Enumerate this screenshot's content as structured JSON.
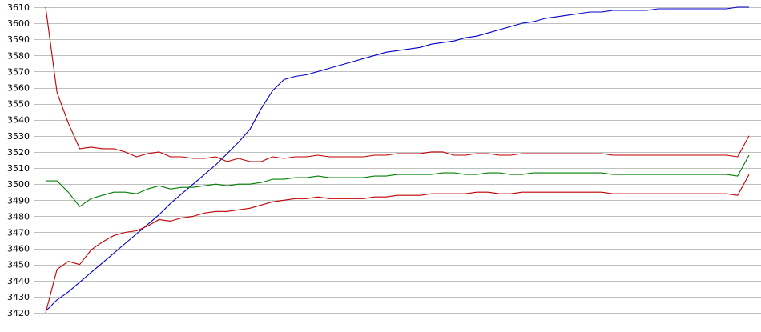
{
  "chart_data": {
    "type": "line",
    "title": "",
    "xlabel": "",
    "ylabel": "",
    "grid": true,
    "ylim": [
      3420,
      3610
    ],
    "yticks": [
      3420,
      3430,
      3440,
      3450,
      3460,
      3470,
      3480,
      3490,
      3500,
      3510,
      3520,
      3530,
      3540,
      3550,
      3560,
      3570,
      3580,
      3590,
      3600,
      3610
    ],
    "x": [
      1,
      2,
      3,
      4,
      5,
      6,
      7,
      8,
      9,
      10,
      11,
      12,
      13,
      14,
      15,
      16,
      17,
      18,
      19,
      20,
      21,
      22,
      23,
      24,
      25,
      26,
      27,
      28,
      29,
      30,
      31,
      32,
      33,
      34,
      35,
      36,
      37,
      38,
      39,
      40,
      41,
      42,
      43,
      44,
      45,
      46,
      47,
      48,
      49,
      50,
      51,
      52,
      53,
      54,
      55,
      56,
      57,
      58,
      59,
      60,
      61,
      62,
      63
    ],
    "series": [
      {
        "color": "#0000c8",
        "values": [
          3421,
          3428,
          3433,
          3439,
          3445,
          3451,
          3457,
          3463,
          3469,
          3475,
          3481,
          3488,
          3494,
          3500,
          3506,
          3512,
          3519,
          3526,
          3534,
          3547,
          3558,
          3565,
          3567,
          3568,
          3570,
          3572,
          3574,
          3576,
          3578,
          3580,
          3582,
          3583,
          3584,
          3585,
          3587,
          3588,
          3589,
          3591,
          3592,
          3594,
          3596,
          3598,
          3600,
          3601,
          3603,
          3604,
          3605,
          3606,
          3607,
          3607,
          3608,
          3608,
          3608,
          3608,
          3609,
          3609,
          3609,
          3609,
          3609,
          3609,
          3609,
          3610,
          3610
        ]
      },
      {
        "color": "#c00000",
        "values": [
          3610,
          3557,
          3538,
          3522,
          3523,
          3522,
          3522,
          3520,
          3517,
          3519,
          3520,
          3517,
          3517,
          3516,
          3516,
          3517,
          3514,
          3516,
          3514,
          3514,
          3517,
          3516,
          3517,
          3517,
          3518,
          3517,
          3517,
          3517,
          3517,
          3518,
          3518,
          3519,
          3519,
          3519,
          3520,
          3520,
          3518,
          3518,
          3519,
          3519,
          3518,
          3518,
          3519,
          3519,
          3519,
          3519,
          3519,
          3519,
          3519,
          3519,
          3518,
          3518,
          3518,
          3518,
          3518,
          3518,
          3518,
          3518,
          3518,
          3518,
          3518,
          3517,
          3530
        ]
      },
      {
        "color": "#008000",
        "values": [
          3502,
          3502,
          3495,
          3486,
          3491,
          3493,
          3495,
          3495,
          3494,
          3497,
          3499,
          3497,
          3498,
          3498,
          3499,
          3500,
          3499,
          3500,
          3500,
          3501,
          3503,
          3503,
          3504,
          3504,
          3505,
          3504,
          3504,
          3504,
          3504,
          3505,
          3505,
          3506,
          3506,
          3506,
          3506,
          3507,
          3507,
          3506,
          3506,
          3507,
          3507,
          3506,
          3506,
          3507,
          3507,
          3507,
          3507,
          3507,
          3507,
          3507,
          3506,
          3506,
          3506,
          3506,
          3506,
          3506,
          3506,
          3506,
          3506,
          3506,
          3506,
          3505,
          3518
        ]
      },
      {
        "color": "#c00000",
        "values": [
          3420,
          3447,
          3452,
          3450,
          3459,
          3464,
          3468,
          3470,
          3471,
          3474,
          3478,
          3477,
          3479,
          3480,
          3482,
          3483,
          3483,
          3484,
          3485,
          3487,
          3489,
          3490,
          3491,
          3491,
          3492,
          3491,
          3491,
          3491,
          3491,
          3492,
          3492,
          3493,
          3493,
          3493,
          3494,
          3494,
          3494,
          3494,
          3495,
          3495,
          3494,
          3494,
          3495,
          3495,
          3495,
          3495,
          3495,
          3495,
          3495,
          3495,
          3494,
          3494,
          3494,
          3494,
          3494,
          3494,
          3494,
          3494,
          3494,
          3494,
          3494,
          3493,
          3506
        ]
      }
    ]
  }
}
